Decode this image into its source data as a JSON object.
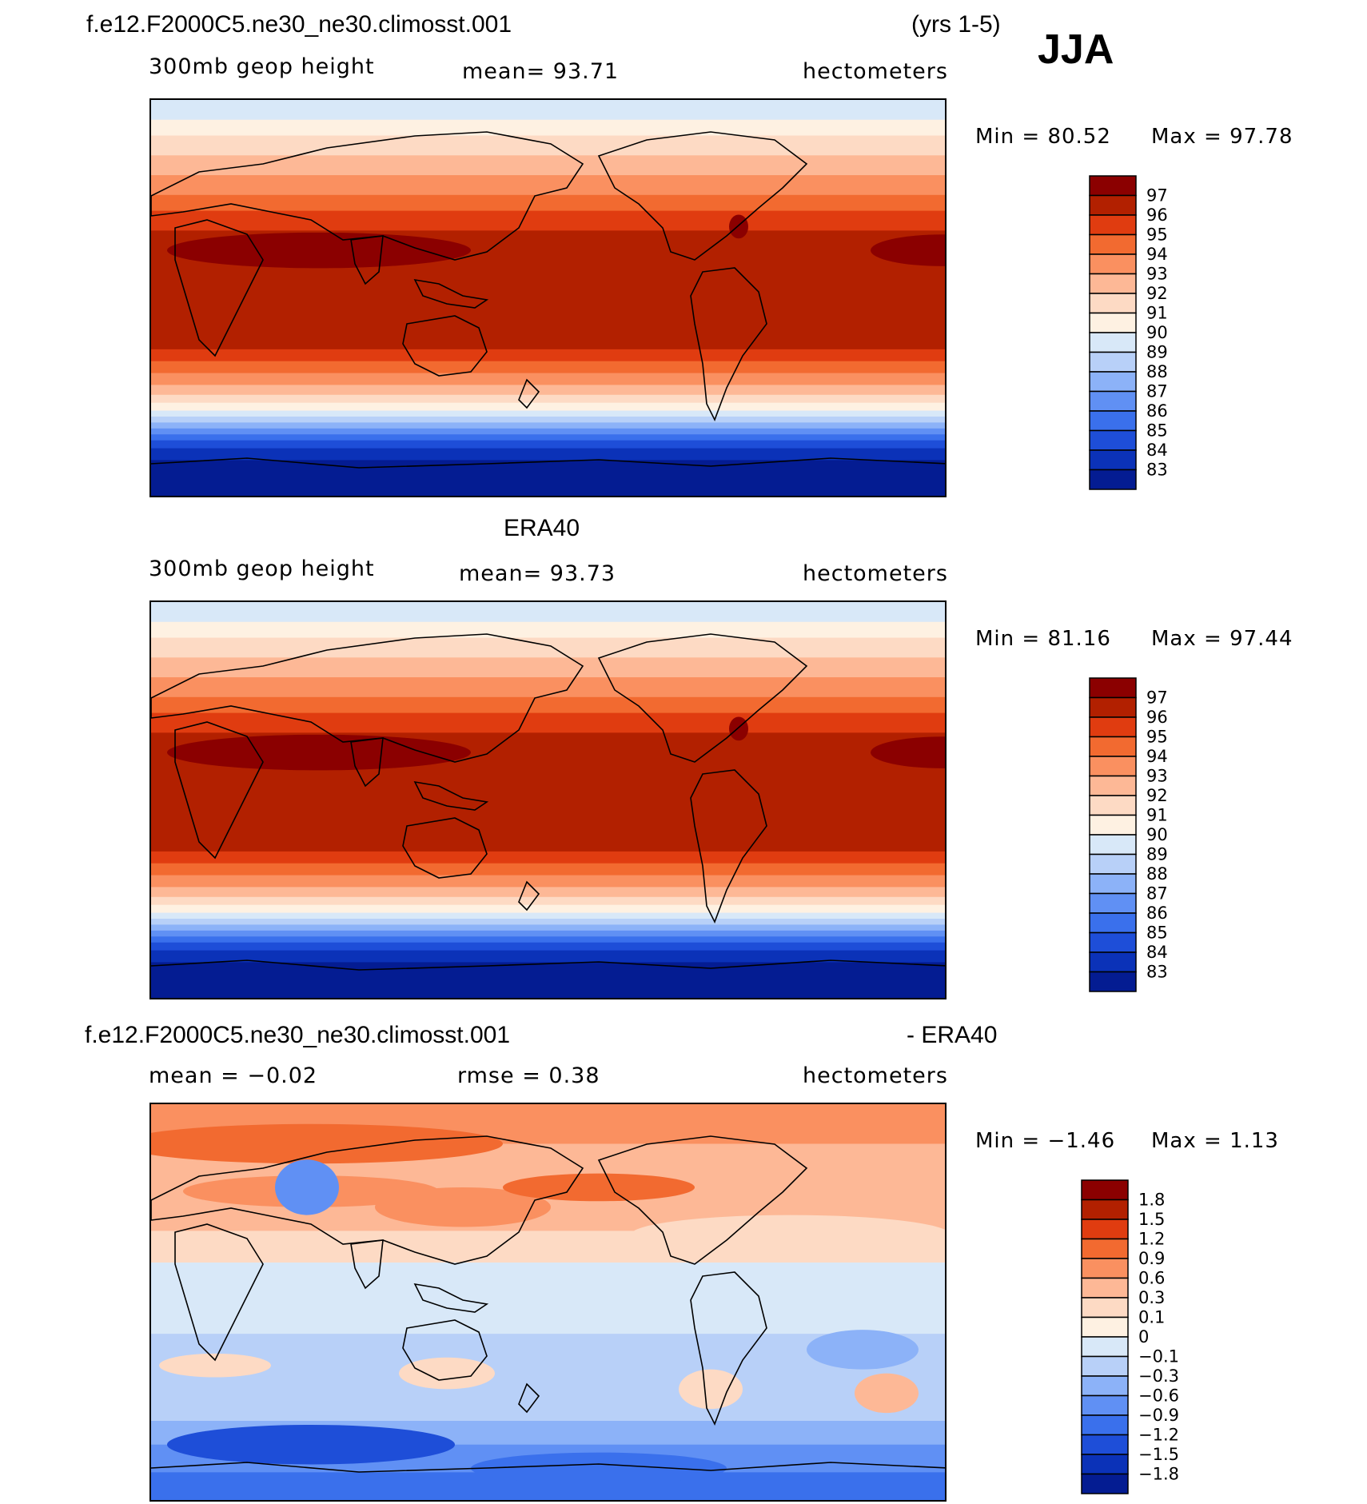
{
  "header": {
    "run_name": "f.e12.F2000C5.ne30_ne30.climosst.001",
    "years": "(yrs 1-5)",
    "season": "JJA"
  },
  "chart_data": [
    {
      "type": "heatmap",
      "id": "model",
      "variable": "300mb  geop  height",
      "mean_label": "mean=   93.71",
      "units": "hectometers",
      "min_label": "Min  =    80.52",
      "max_label": "Max  =    97.78",
      "min": 80.52,
      "max": 97.78,
      "levels": [
        "97",
        "96",
        "95",
        "94",
        "93",
        "92",
        "91",
        "90",
        "89",
        "88",
        "87",
        "86",
        "85",
        "84",
        "83"
      ],
      "colors": [
        "#8b0000",
        "#b22000",
        "#e03c10",
        "#f26a30",
        "#fa9060",
        "#fdb896",
        "#fddac4",
        "#fef1e2",
        "#d8e8f8",
        "#b8d0f8",
        "#8cb2f8",
        "#6090f4",
        "#3a70ec",
        "#1e4ed8",
        "#0b32b8",
        "#041c92"
      ],
      "axis": "longitude 0-360, latitude 90N-90S"
    },
    {
      "type": "heatmap",
      "id": "obs",
      "title": "ERA40",
      "variable": "300mb  geop  height",
      "mean_label": "mean=   93.73",
      "units": "hectometers",
      "min_label": "Min  =    81.16",
      "max_label": "Max  =    97.44",
      "min": 81.16,
      "max": 97.44,
      "levels": [
        "97",
        "96",
        "95",
        "94",
        "93",
        "92",
        "91",
        "90",
        "89",
        "88",
        "87",
        "86",
        "85",
        "84",
        "83"
      ],
      "colors": [
        "#8b0000",
        "#b22000",
        "#e03c10",
        "#f26a30",
        "#fa9060",
        "#fdb896",
        "#fddac4",
        "#fef1e2",
        "#d8e8f8",
        "#b8d0f8",
        "#8cb2f8",
        "#6090f4",
        "#3a70ec",
        "#1e4ed8",
        "#0b32b8",
        "#041c92"
      ],
      "axis": "longitude 0-360, latitude 90N-90S"
    },
    {
      "type": "heatmap",
      "id": "diff",
      "title_left": "f.e12.F2000C5.ne30_ne30.climosst.001",
      "title_right": "- ERA40",
      "mean_label": "mean  =   −0.02",
      "rmse_label": "rmse  =     0.38",
      "units": "hectometers",
      "min_label": "Min  =   −1.46",
      "max_label": "Max  =      1.13",
      "min": -1.46,
      "max": 1.13,
      "levels": [
        "1.8",
        "1.5",
        "1.2",
        "0.9",
        "0.6",
        "0.3",
        "0.1",
        "0",
        "−0.1",
        "−0.3",
        "−0.6",
        "−0.9",
        "−1.2",
        "−1.5",
        "−1.8"
      ],
      "colors": [
        "#8b0000",
        "#b22000",
        "#e03c10",
        "#f26a30",
        "#fa9060",
        "#fdb896",
        "#fddac4",
        "#fef1e2",
        "#d8e8f8",
        "#b8d0f8",
        "#8cb2f8",
        "#6090f4",
        "#3a70ec",
        "#1e4ed8",
        "#0b32b8",
        "#041c92"
      ],
      "axis": "longitude 0-360, latitude 90N-90S"
    }
  ]
}
